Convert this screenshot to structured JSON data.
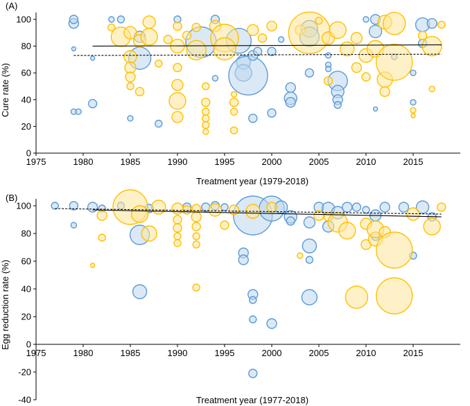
{
  "colors": {
    "blue_stroke": "#5b9bd5",
    "blue_fill": "#bdd7ee",
    "gold_stroke": "#ffc000",
    "gold_fill": "#ffe699",
    "axis": "#000000",
    "background": "#ffffff"
  },
  "chart_data": [
    {
      "type": "scatter",
      "panel_label": "(A)",
      "title": "",
      "xlabel": "Treatment year (1979-2018)",
      "ylabel": "Cure rate (%)",
      "xlim": [
        1975,
        2020
      ],
      "ylim": [
        0,
        100
      ],
      "xticks": [
        "1975",
        "1980",
        "1985",
        "1990",
        "1995",
        "2000",
        "2005",
        "2010",
        "2015"
      ],
      "yticks": [
        "0",
        "20",
        "40",
        "60",
        "80",
        "100"
      ],
      "grid": false,
      "legend": "none",
      "trend_lines": [
        {
          "style": "solid",
          "x": [
            1981,
            2018
          ],
          "y": [
            80,
            81
          ]
        },
        {
          "style": "dashed",
          "x": [
            1979,
            2018
          ],
          "y": [
            73,
            74
          ]
        }
      ],
      "series": [
        {
          "color": "blue",
          "points": [
            [
              1979,
              97,
              7
            ],
            [
              1979,
              100,
              6
            ],
            [
              1979,
              78,
              3
            ],
            [
              1979,
              31,
              4
            ],
            [
              1979.5,
              31,
              4
            ],
            [
              1981,
              37,
              6
            ],
            [
              1981,
              71,
              3
            ],
            [
              1983,
              100,
              4
            ],
            [
              1984,
              100,
              5
            ],
            [
              1985,
              26,
              4
            ],
            [
              1986,
              71,
              16
            ],
            [
              1986,
              87,
              8
            ],
            [
              1988,
              22,
              5
            ],
            [
              1990,
              100,
              5
            ],
            [
              1992.5,
              83,
              22
            ],
            [
              1994,
              100,
              6
            ],
            [
              1994,
              56,
              4
            ],
            [
              1996.5,
              84,
              18
            ],
            [
              1997,
              68,
              10
            ],
            [
              1997,
              60,
              12
            ],
            [
              1997.5,
              58,
              28
            ],
            [
              1998,
              73,
              7
            ],
            [
              1998,
              26,
              6
            ],
            [
              1998.5,
              76,
              6
            ],
            [
              2000,
              76,
              6
            ],
            [
              2000,
              30,
              6
            ],
            [
              2001,
              85,
              4
            ],
            [
              2002,
              49,
              7
            ],
            [
              2002,
              41,
              9
            ],
            [
              2002,
              38,
              7
            ],
            [
              2004,
              93,
              12
            ],
            [
              2004,
              87,
              14
            ],
            [
              2004,
              60,
              6
            ],
            [
              2006,
              73,
              4
            ],
            [
              2006,
              66,
              4
            ],
            [
              2006,
              63,
              4
            ],
            [
              2007,
              54,
              14
            ],
            [
              2007,
              46,
              9
            ],
            [
              2007,
              40,
              7
            ],
            [
              2007,
              36,
              5
            ],
            [
              2010,
              100,
              4
            ],
            [
              2011,
              100,
              7
            ],
            [
              2011,
              91,
              9
            ],
            [
              2011,
              33,
              3
            ],
            [
              2013,
              72,
              4
            ],
            [
              2015,
              60,
              4
            ],
            [
              2015,
              38,
              4
            ],
            [
              2016,
              96,
              10
            ],
            [
              2016,
              82,
              6
            ],
            [
              2017,
              97,
              7
            ]
          ]
        },
        {
          "color": "gold",
          "points": [
            [
              1983,
              94,
              5
            ],
            [
              1984,
              87,
              14
            ],
            [
              1985,
              90,
              9
            ],
            [
              1985,
              72,
              9
            ],
            [
              1985,
              64,
              8
            ],
            [
              1985,
              57,
              7
            ],
            [
              1985,
              50,
              5
            ],
            [
              1986,
              46,
              6
            ],
            [
              1986,
              84,
              9
            ],
            [
              1987,
              98,
              9
            ],
            [
              1987,
              87,
              12
            ],
            [
              1988,
              67,
              5
            ],
            [
              1989,
              85,
              6
            ],
            [
              1990,
              95,
              6
            ],
            [
              1990,
              80,
              10
            ],
            [
              1990,
              64,
              6
            ],
            [
              1990,
              51,
              8
            ],
            [
              1990,
              39,
              12
            ],
            [
              1990,
              27,
              8
            ],
            [
              1991,
              88,
              6
            ],
            [
              1992,
              94,
              6
            ],
            [
              1992,
              77,
              14
            ],
            [
              1993,
              50,
              5
            ],
            [
              1993,
              38,
              6
            ],
            [
              1993,
              31,
              5
            ],
            [
              1993,
              26,
              5
            ],
            [
              1993,
              21,
              5
            ],
            [
              1993,
              16,
              4
            ],
            [
              1994,
              95,
              8
            ],
            [
              1995,
              86,
              20
            ],
            [
              1995,
              78,
              16
            ],
            [
              1996,
              44,
              4
            ],
            [
              1996,
              38,
              6
            ],
            [
              1996,
              31,
              5
            ],
            [
              1996,
              17,
              5
            ],
            [
              1998,
              92,
              8
            ],
            [
              1999,
              86,
              6
            ],
            [
              2000,
              95,
              7
            ],
            [
              2003,
              92,
              7
            ],
            [
              2004,
              90,
              30
            ],
            [
              2005,
              99,
              5
            ],
            [
              2006,
              86,
              9
            ],
            [
              2006,
              54,
              6
            ],
            [
              2007,
              92,
              12
            ],
            [
              2008,
              78,
              10
            ],
            [
              2009,
              86,
              8
            ],
            [
              2009,
              64,
              7
            ],
            [
              2010,
              73,
              10
            ],
            [
              2010,
              57,
              6
            ],
            [
              2011,
              78,
              12
            ],
            [
              2012,
              98,
              10
            ],
            [
              2012,
              55,
              11
            ],
            [
              2012,
              46,
              7
            ],
            [
              2013,
              68,
              26
            ],
            [
              2013,
              97,
              16
            ],
            [
              2015,
              32,
              4
            ],
            [
              2015,
              28,
              3
            ],
            [
              2016,
              88,
              6
            ],
            [
              2017,
              80,
              14
            ],
            [
              2017,
              48,
              4
            ],
            [
              2018,
              96,
              5
            ]
          ]
        }
      ]
    },
    {
      "type": "scatter",
      "panel_label": "(B)",
      "title": "",
      "xlabel": "Treatment year (1977-2018)",
      "ylabel": "Egg reduction rate (%)",
      "xlim": [
        1975,
        2020
      ],
      "ylim": [
        -40,
        100
      ],
      "xticks": [
        "1975",
        "1980",
        "1985",
        "1990",
        "1995",
        "2000",
        "2005",
        "2010",
        "2015"
      ],
      "yticks": [
        "-40",
        "-20",
        "0",
        "20",
        "40",
        "60",
        "80",
        "100"
      ],
      "grid": false,
      "legend": "none",
      "trend_lines": [
        {
          "style": "solid",
          "x": [
            1981,
            2018
          ],
          "y": [
            97,
            92
          ]
        },
        {
          "style": "dashed",
          "x": [
            1977,
            2018
          ],
          "y": [
            98,
            94
          ]
        }
      ],
      "series": [
        {
          "color": "blue",
          "points": [
            [
              1977,
              100,
              5
            ],
            [
              1979,
              100,
              6
            ],
            [
              1979,
              86,
              4
            ],
            [
              1981,
              99,
              7
            ],
            [
              1982,
              98,
              5
            ],
            [
              1984,
              100,
              5
            ],
            [
              1986,
              79,
              14
            ],
            [
              1986,
              38,
              10
            ],
            [
              1987,
              98,
              6
            ],
            [
              1991,
              99,
              6
            ],
            [
              1993,
              99,
              6
            ],
            [
              1994,
              100,
              6
            ],
            [
              1995,
              99,
              5
            ],
            [
              1997,
              66,
              7
            ],
            [
              1997,
              61,
              7
            ],
            [
              1998,
              93,
              28
            ],
            [
              1998,
              36,
              7
            ],
            [
              1998,
              32,
              5
            ],
            [
              1998,
              18,
              5
            ],
            [
              1998,
              -21,
              6
            ],
            [
              2000,
              98,
              18
            ],
            [
              2000,
              15,
              7
            ],
            [
              2001,
              99,
              9
            ],
            [
              2002,
              92,
              9
            ],
            [
              2002,
              89,
              6
            ],
            [
              2004,
              88,
              8
            ],
            [
              2004,
              71,
              10
            ],
            [
              2004,
              61,
              5
            ],
            [
              2004,
              34,
              11
            ],
            [
              2005,
              99,
              7
            ],
            [
              2006,
              98,
              9
            ],
            [
              2006,
              85,
              8
            ],
            [
              2007,
              95,
              9
            ],
            [
              2008,
              99,
              7
            ],
            [
              2009,
              99,
              6
            ],
            [
              2010,
              97,
              5
            ],
            [
              2011,
              93,
              8
            ],
            [
              2011,
              78,
              6
            ],
            [
              2012,
              99,
              7
            ],
            [
              2014,
              99,
              7
            ],
            [
              2015,
              64,
              5
            ],
            [
              2016,
              99,
              9
            ],
            [
              2017,
              92,
              6
            ]
          ]
        },
        {
          "color": "gold",
          "points": [
            [
              1981,
              57,
              3
            ],
            [
              1982,
              77,
              5
            ],
            [
              1982,
              93,
              7
            ],
            [
              1985,
              99,
              25
            ],
            [
              1986,
              94,
              12
            ],
            [
              1987,
              80,
              11
            ],
            [
              1988,
              99,
              10
            ],
            [
              1990,
              98,
              8
            ],
            [
              1990,
              90,
              6
            ],
            [
              1990,
              84,
              6
            ],
            [
              1990,
              78,
              5
            ],
            [
              1990,
              73,
              5
            ],
            [
              1991,
              97,
              6
            ],
            [
              1992,
              98,
              6
            ],
            [
              1992,
              92,
              7
            ],
            [
              1992,
              85,
              6
            ],
            [
              1992,
              78,
              5
            ],
            [
              1992,
              72,
              5
            ],
            [
              1992,
              41,
              5
            ],
            [
              1994,
              97,
              9
            ],
            [
              1995,
              86,
              6
            ],
            [
              1996,
              97,
              7
            ],
            [
              1998,
              96,
              10
            ],
            [
              2000,
              99,
              7
            ],
            [
              2003,
              64,
              4
            ],
            [
              2005,
              93,
              7
            ],
            [
              2006,
              92,
              6
            ],
            [
              2007,
              88,
              14
            ],
            [
              2008,
              82,
              12
            ],
            [
              2009,
              34,
              16
            ],
            [
              2010,
              72,
              7
            ],
            [
              2010,
              87,
              8
            ],
            [
              2011,
              76,
              10
            ],
            [
              2011,
              83,
              12
            ],
            [
              2012,
              81,
              8
            ],
            [
              2013,
              68,
              26
            ],
            [
              2013,
              35,
              26
            ],
            [
              2015,
              94,
              9
            ],
            [
              2017,
              85,
              12
            ],
            [
              2018,
              99,
              6
            ]
          ]
        }
      ]
    }
  ]
}
